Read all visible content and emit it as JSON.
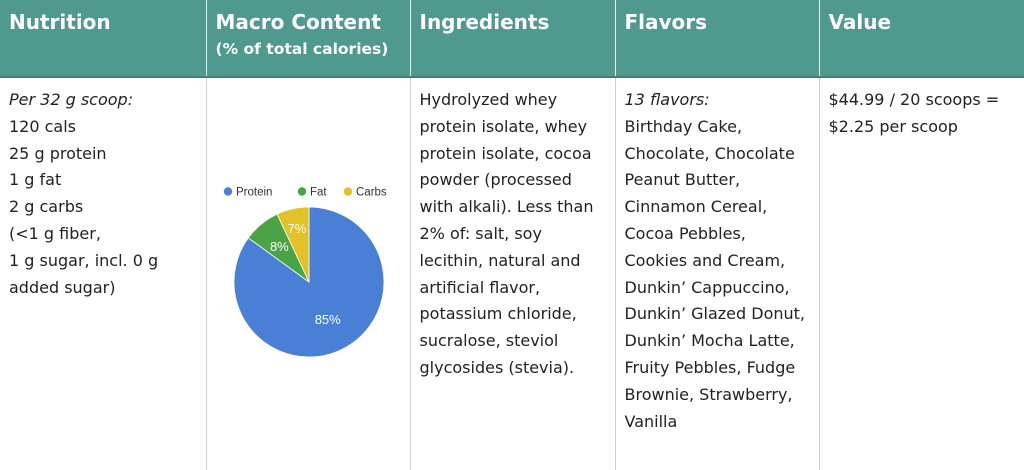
{
  "headers": {
    "nutrition": "Nutrition",
    "macro_title": "Macro Content",
    "macro_sub": "(% of total calories)",
    "ingredients": "Ingredients",
    "flavors": "Flavors",
    "value": "Value"
  },
  "nutrition": {
    "serving": "Per 32 g scoop:",
    "lines": [
      "120 cals",
      "25 g protein",
      "1 g fat",
      "2 g carbs",
      "(<1 g fiber,",
      "1 g sugar, incl. 0 g",
      "added sugar)"
    ]
  },
  "ingredients": {
    "text": "Hydrolyzed whey protein isolate, whey protein isolate, cocoa powder (processed with alkali). Less than 2% of: salt, soy lecithin, natural and artificial flavor, potassium chloride, sucralose, steviol glycosides (stevia)."
  },
  "flavors": {
    "count_label": "13 flavors:",
    "list": "Birthday Cake, Chocolate, Chocolate Peanut Butter, Cinnamon Cereal, Cocoa Pebbles, Cookies and Cream, Dunkin’ Cappuccino, Dunkin’ Glazed Donut, Dunkin’ Mocha Latte, Fruity Pebbles, Fudge Brownie, Strawberry, Vanilla"
  },
  "value": {
    "text": "$44.99 / 20 scoops = $2.25 per scoop"
  },
  "chart_data": {
    "type": "pie",
    "categories": [
      "Protein",
      "Fat",
      "Carbs"
    ],
    "values": [
      85,
      8,
      7
    ],
    "labels": [
      "85%",
      "8%",
      "7%"
    ],
    "colors": [
      "#4a7fd6",
      "#4aa345",
      "#e3c227"
    ],
    "legend_position": "top"
  }
}
